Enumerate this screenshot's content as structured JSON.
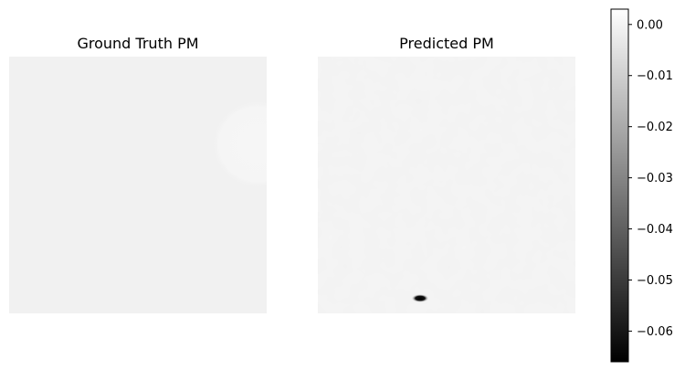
{
  "chart_data": [
    {
      "type": "heatmap",
      "title": "Ground Truth PM",
      "axes_visible": false,
      "colormap": "gray",
      "background_value": -0.0005,
      "features": [
        {
          "shape": "faint half-disc at right edge",
          "value": 0.0005
        }
      ]
    },
    {
      "type": "heatmap",
      "title": "Predicted PM",
      "axes_visible": false,
      "colormap": "gray",
      "background_value": -0.0005,
      "features": [
        {
          "shape": "small dark elliptical spot near bottom",
          "value": -0.065
        }
      ]
    }
  ],
  "colorbar": {
    "cmap": "gray",
    "vmin": -0.066,
    "vmax": 0.003,
    "ticks": [
      0.0,
      -0.01,
      -0.02,
      -0.03,
      -0.04,
      -0.05,
      -0.06
    ],
    "tick_labels": [
      "0.00",
      "−0.01",
      "−0.02",
      "−0.03",
      "−0.04",
      "−0.05",
      "−0.06"
    ]
  }
}
